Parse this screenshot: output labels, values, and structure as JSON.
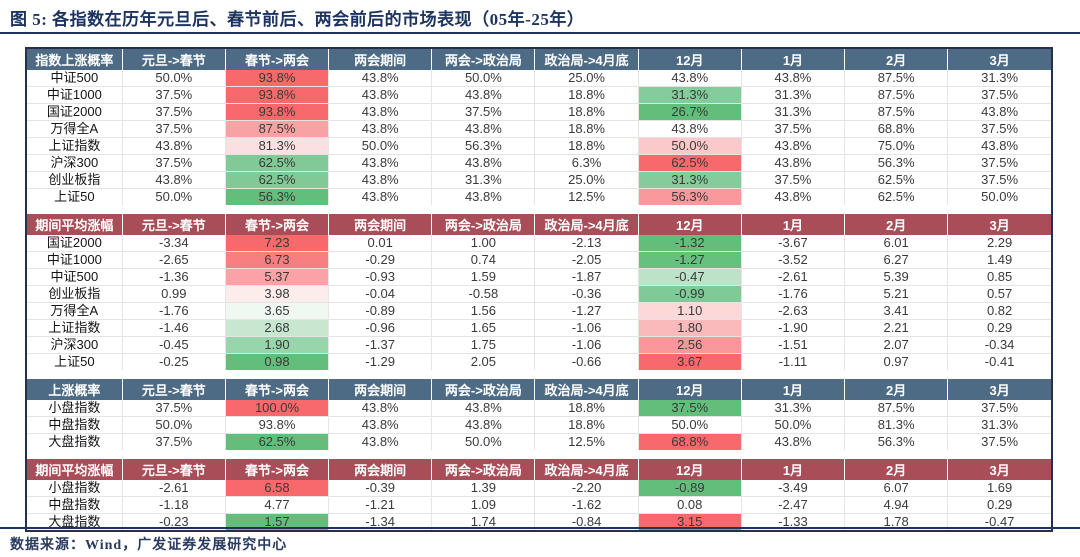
{
  "title": "图 5:  各指数在历年元旦后、春节前后、两会前后的市场表现（05年-25年）",
  "source_note": "数据来源：Wind，广发证券发展研究中心",
  "colors": {
    "title_navy": "#1d3461",
    "header_blue": "#4d6b84",
    "header_red": "#a94d58",
    "outer_border": "#27304a",
    "grid_line": "#e4e4e4",
    "heat_red_max": "#f8696b",
    "heat_green_max": "#63be7b"
  },
  "chart_data": {
    "type": "table",
    "period_columns": [
      "元旦->春节",
      "春节->两会",
      "两会期间",
      "两会->政治局",
      "政治局->4月底",
      "12月",
      "1月",
      "2月",
      "3月"
    ],
    "sections": [
      {
        "label": "指数上涨概率",
        "theme": "blue",
        "gap_after": true,
        "rows": [
          {
            "label": "中证500",
            "values": [
              "50.0%",
              "93.8%",
              "43.8%",
              "50.0%",
              "25.0%",
              "43.8%",
              "43.8%",
              "87.5%",
              "31.3%"
            ],
            "colors": [
              null,
              "#f8696b",
              null,
              null,
              null,
              null,
              null,
              null,
              null
            ]
          },
          {
            "label": "中证1000",
            "values": [
              "37.5%",
              "93.8%",
              "43.8%",
              "43.8%",
              "18.8%",
              "31.3%",
              "31.3%",
              "87.5%",
              "37.5%"
            ],
            "colors": [
              null,
              "#f8696b",
              null,
              null,
              null,
              "#84cc9b",
              null,
              null,
              null
            ]
          },
          {
            "label": "国证2000",
            "values": [
              "37.5%",
              "93.8%",
              "43.8%",
              "37.5%",
              "18.8%",
              "26.7%",
              "31.3%",
              "87.5%",
              "43.8%"
            ],
            "colors": [
              null,
              "#f8696b",
              null,
              null,
              null,
              "#63be7b",
              null,
              null,
              null
            ]
          },
          {
            "label": "万得全A",
            "values": [
              "37.5%",
              "87.5%",
              "43.8%",
              "43.8%",
              "18.8%",
              "43.8%",
              "37.5%",
              "68.8%",
              "37.5%"
            ],
            "colors": [
              null,
              "#f9a2a4",
              null,
              null,
              null,
              null,
              null,
              null,
              null
            ]
          },
          {
            "label": "上证指数",
            "values": [
              "43.8%",
              "81.3%",
              "50.0%",
              "56.3%",
              "18.8%",
              "50.0%",
              "43.8%",
              "75.0%",
              "43.8%"
            ],
            "colors": [
              null,
              "#fcdfe0",
              null,
              null,
              null,
              "#fbc9ca",
              null,
              null,
              null
            ]
          },
          {
            "label": "沪深300",
            "values": [
              "37.5%",
              "62.5%",
              "43.8%",
              "43.8%",
              "6.3%",
              "62.5%",
              "43.8%",
              "56.3%",
              "37.5%"
            ],
            "colors": [
              null,
              "#7fca96",
              null,
              null,
              null,
              "#f8696b",
              null,
              null,
              null
            ]
          },
          {
            "label": "创业板指",
            "values": [
              "43.8%",
              "62.5%",
              "43.8%",
              "31.3%",
              "25.0%",
              "31.3%",
              "37.5%",
              "62.5%",
              "37.5%"
            ],
            "colors": [
              null,
              "#7fca96",
              null,
              null,
              null,
              "#84cc9b",
              null,
              null,
              null
            ]
          },
          {
            "label": "上证50",
            "values": [
              "50.0%",
              "56.3%",
              "43.8%",
              "43.8%",
              "12.5%",
              "56.3%",
              "43.8%",
              "62.5%",
              "50.0%"
            ],
            "colors": [
              null,
              "#63be7b",
              null,
              null,
              null,
              "#f9999b",
              null,
              null,
              null
            ]
          }
        ]
      },
      {
        "label": "期间平均涨幅",
        "theme": "red",
        "gap_after": true,
        "rows": [
          {
            "label": "国证2000",
            "values": [
              "-3.34",
              "7.23",
              "0.01",
              "1.00",
              "-2.13",
              "-1.32",
              "-3.67",
              "6.01",
              "2.29"
            ],
            "colors": [
              null,
              "#f8696b",
              null,
              null,
              null,
              "#63be7b",
              null,
              null,
              null
            ]
          },
          {
            "label": "中证1000",
            "values": [
              "-2.65",
              "6.73",
              "-0.29",
              "0.74",
              "-2.05",
              "-1.27",
              "-3.52",
              "6.27",
              "1.49"
            ],
            "colors": [
              null,
              "#f97e81",
              null,
              null,
              null,
              "#66c07e",
              null,
              null,
              null
            ]
          },
          {
            "label": "中证500",
            "values": [
              "-1.36",
              "5.37",
              "-0.93",
              "1.59",
              "-1.87",
              "-0.47",
              "-2.61",
              "5.39",
              "0.85"
            ],
            "colors": [
              null,
              "#faa2a4",
              null,
              null,
              null,
              "#bce2c7",
              null,
              null,
              null
            ]
          },
          {
            "label": "创业板指",
            "values": [
              "0.99",
              "3.98",
              "-0.04",
              "-0.58",
              "-0.36",
              "-0.99",
              "-1.76",
              "5.21",
              "0.57"
            ],
            "colors": [
              null,
              "#fdecec",
              null,
              null,
              null,
              "#7fca96",
              null,
              null,
              null
            ]
          },
          {
            "label": "万得全A",
            "values": [
              "-1.76",
              "3.65",
              "-0.89",
              "1.56",
              "-1.27",
              "1.10",
              "-2.63",
              "3.41",
              "0.82"
            ],
            "colors": [
              null,
              "#f0f8f2",
              null,
              null,
              null,
              "#fcd8d9",
              null,
              null,
              null
            ]
          },
          {
            "label": "上证指数",
            "values": [
              "-1.46",
              "2.68",
              "-0.96",
              "1.65",
              "-1.06",
              "1.80",
              "-1.90",
              "2.21",
              "0.29"
            ],
            "colors": [
              null,
              "#c8e7d1",
              null,
              null,
              null,
              "#fab9bb",
              null,
              null,
              null
            ]
          },
          {
            "label": "沪深300",
            "values": [
              "-0.45",
              "1.90",
              "-1.37",
              "1.75",
              "-1.06",
              "2.56",
              "-1.51",
              "2.07",
              "-0.34"
            ],
            "colors": [
              null,
              "#98d5ab",
              null,
              null,
              null,
              "#f9989a",
              null,
              null,
              null
            ]
          },
          {
            "label": "上证50",
            "values": [
              "-0.25",
              "0.98",
              "-1.29",
              "2.05",
              "-0.66",
              "3.67",
              "-1.11",
              "0.97",
              "-0.41"
            ],
            "colors": [
              null,
              "#63be7b",
              null,
              null,
              null,
              "#f8696b",
              null,
              null,
              null
            ]
          }
        ]
      },
      {
        "label": "上涨概率",
        "theme": "blue",
        "gap_after": true,
        "rows": [
          {
            "label": "小盘指数",
            "values": [
              "37.5%",
              "100.0%",
              "43.8%",
              "43.8%",
              "18.8%",
              "37.5%",
              "31.3%",
              "87.5%",
              "37.5%"
            ],
            "colors": [
              null,
              "#f8696b",
              null,
              null,
              null,
              "#63be7b",
              null,
              null,
              null
            ]
          },
          {
            "label": "中盘指数",
            "values": [
              "50.0%",
              "93.8%",
              "43.8%",
              "43.8%",
              "18.8%",
              "50.0%",
              "50.0%",
              "81.3%",
              "31.3%"
            ],
            "colors": [
              null,
              null,
              null,
              null,
              null,
              null,
              null,
              null,
              null
            ]
          },
          {
            "label": "大盘指数",
            "values": [
              "37.5%",
              "62.5%",
              "43.8%",
              "50.0%",
              "12.5%",
              "68.8%",
              "43.8%",
              "56.3%",
              "37.5%"
            ],
            "colors": [
              null,
              "#63be7b",
              null,
              null,
              null,
              "#f8696b",
              null,
              null,
              null
            ]
          }
        ]
      },
      {
        "label": "期间平均涨幅",
        "theme": "red",
        "gap_after": false,
        "rows": [
          {
            "label": "小盘指数",
            "values": [
              "-2.61",
              "6.58",
              "-0.39",
              "1.39",
              "-2.20",
              "-0.89",
              "-3.49",
              "6.07",
              "1.69"
            ],
            "colors": [
              null,
              "#f8696b",
              null,
              null,
              null,
              "#63be7b",
              null,
              null,
              null
            ]
          },
          {
            "label": "中盘指数",
            "values": [
              "-1.18",
              "4.77",
              "-1.21",
              "1.09",
              "-1.62",
              "0.08",
              "-2.47",
              "4.94",
              "0.29"
            ],
            "colors": [
              null,
              null,
              null,
              null,
              null,
              null,
              null,
              null,
              null
            ]
          },
          {
            "label": "大盘指数",
            "values": [
              "-0.23",
              "1.57",
              "-1.34",
              "1.74",
              "-0.84",
              "3.15",
              "-1.33",
              "1.78",
              "-0.47"
            ],
            "colors": [
              null,
              "#63be7b",
              null,
              null,
              null,
              "#f8696b",
              null,
              null,
              null
            ]
          }
        ]
      }
    ]
  }
}
